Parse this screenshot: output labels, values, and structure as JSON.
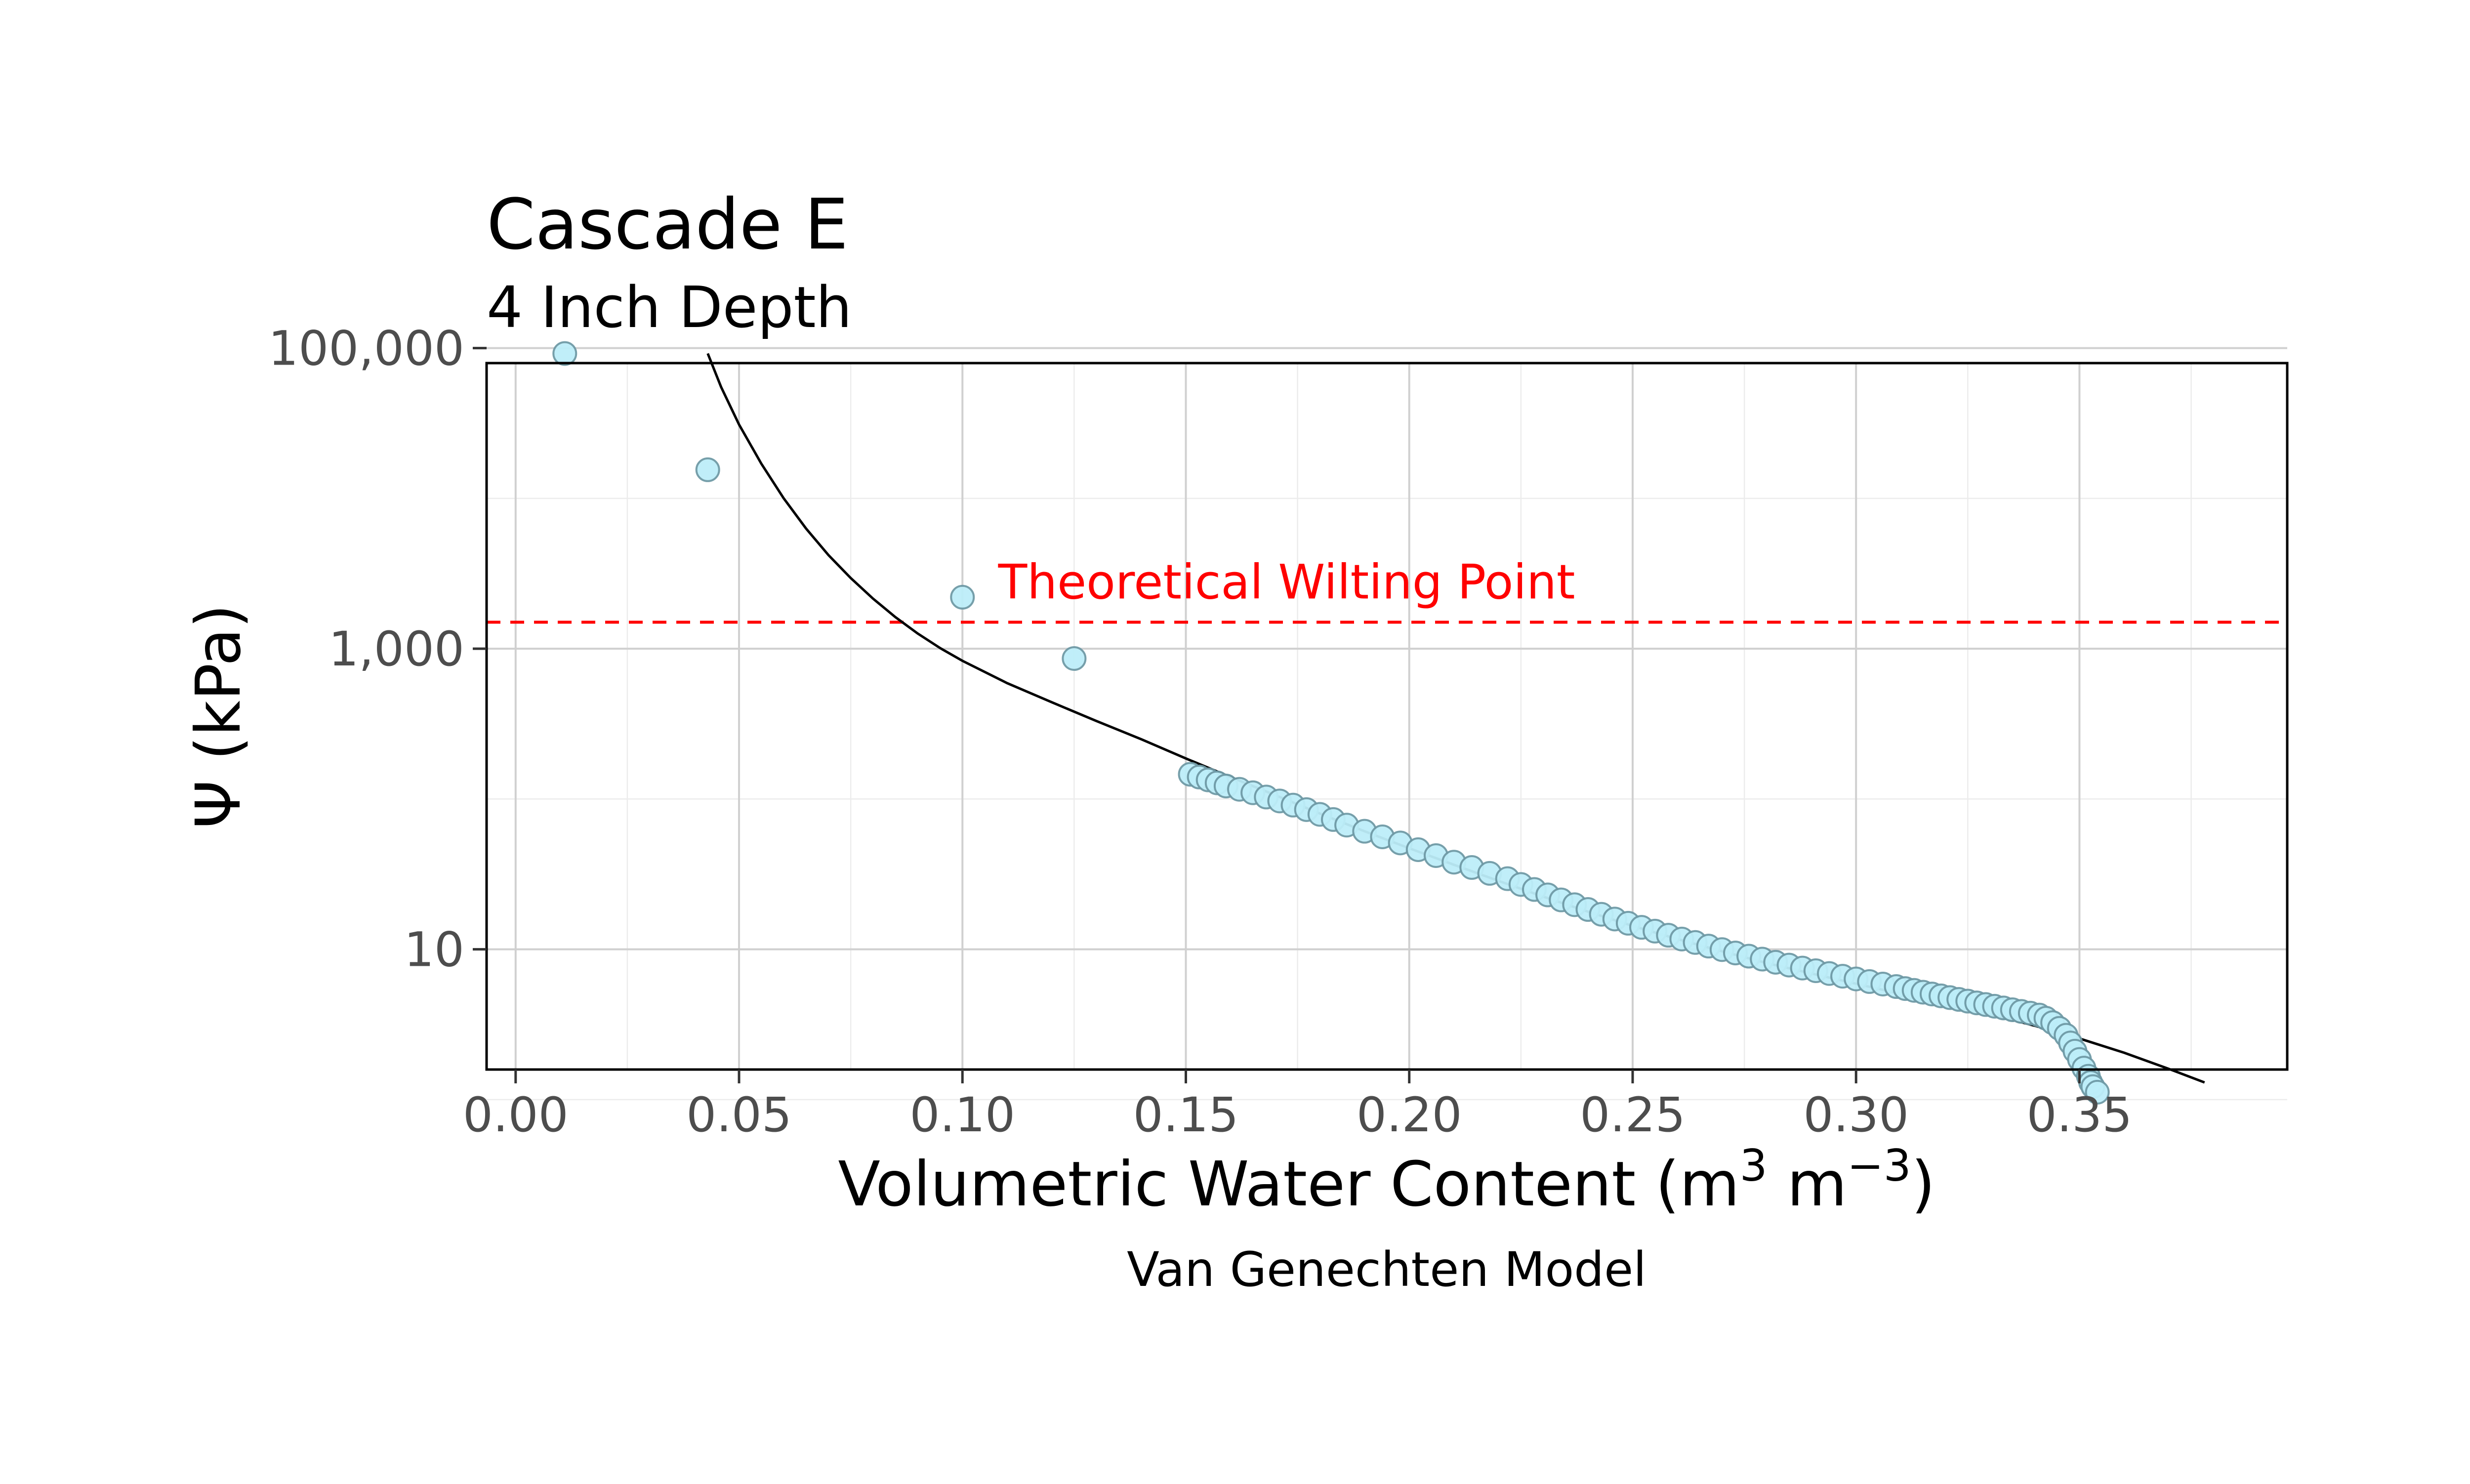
{
  "chart_data": {
    "type": "scatter",
    "title": "Cascade E",
    "subtitle": "4 Inch Depth",
    "xlabel_main": "Volumetric Water Content (m",
    "xlabel_sup1": "3",
    "xlabel_mid": " m",
    "xlabel_sup2": "−3",
    "xlabel_end": ")",
    "ylabel": "Ψ (kPa)",
    "caption": "Van Genechten Model",
    "xlim": [
      -0.0065,
      0.3965
    ],
    "ylim_log10": [
      0.2,
      4.9
    ],
    "y_scale": "log10",
    "grid": true,
    "x_ticks": [
      0.0,
      0.05,
      0.1,
      0.15,
      0.2,
      0.25,
      0.3,
      0.35
    ],
    "x_tick_labels": [
      "0.00",
      "0.05",
      "0.10",
      "0.15",
      "0.20",
      "0.25",
      "0.30",
      "0.35"
    ],
    "y_ticks": [
      10,
      1000,
      100000
    ],
    "y_tick_labels": [
      "10",
      "1,000",
      "100,000"
    ],
    "reference_line": {
      "label": "Theoretical Wilting Point",
      "y": 1500,
      "color": "#ff0000",
      "style": "dashed"
    },
    "point_color": "#bdeef9",
    "series": [
      {
        "kind": "points",
        "x": [
          0.011,
          0.043,
          0.1,
          0.125,
          0.151,
          0.153,
          0.155,
          0.157,
          0.159,
          0.162,
          0.165,
          0.168,
          0.171,
          0.174,
          0.177,
          0.18,
          0.183,
          0.186,
          0.19,
          0.194,
          0.198,
          0.202,
          0.206,
          0.21,
          0.214,
          0.218,
          0.222,
          0.225,
          0.228,
          0.231,
          0.234,
          0.237,
          0.24,
          0.243,
          0.246,
          0.249,
          0.252,
          0.255,
          0.258,
          0.261,
          0.264,
          0.267,
          0.27,
          0.273,
          0.276,
          0.279,
          0.282,
          0.285,
          0.288,
          0.291,
          0.294,
          0.297,
          0.3,
          0.303,
          0.306,
          0.309,
          0.311,
          0.313,
          0.315,
          0.317,
          0.319,
          0.321,
          0.323,
          0.325,
          0.327,
          0.329,
          0.331,
          0.333,
          0.335,
          0.337,
          0.339,
          0.341,
          0.3425,
          0.344,
          0.3455,
          0.347,
          0.348,
          0.349,
          0.35,
          0.351,
          0.352,
          0.3525,
          0.353,
          0.354
        ],
        "y": [
          92000,
          15500,
          2200,
          860,
          146,
          140,
          134,
          128,
          122,
          116,
          110,
          103,
          97,
          91,
          85,
          79,
          73,
          67,
          61,
          56,
          51,
          46,
          42,
          38,
          35,
          32,
          29.5,
          27,
          25,
          23,
          21.3,
          19.8,
          18.4,
          17.1,
          15.9,
          14.9,
          14,
          13.2,
          12.4,
          11.7,
          11.1,
          10.5,
          9.95,
          9.45,
          9.0,
          8.6,
          8.2,
          7.85,
          7.5,
          7.2,
          6.9,
          6.62,
          6.35,
          6.1,
          5.87,
          5.65,
          5.48,
          5.33,
          5.18,
          5.04,
          4.9,
          4.77,
          4.64,
          4.52,
          4.4,
          4.29,
          4.18,
          4.07,
          3.96,
          3.86,
          3.76,
          3.65,
          3.48,
          3.25,
          2.98,
          2.68,
          2.38,
          2.1,
          1.85,
          1.62,
          1.43,
          1.3,
          1.22,
          1.12
        ]
      },
      {
        "kind": "fitted_line",
        "color": "#000000",
        "x": [
          0.043,
          0.046,
          0.05,
          0.055,
          0.06,
          0.065,
          0.07,
          0.075,
          0.08,
          0.085,
          0.09,
          0.095,
          0.1,
          0.11,
          0.12,
          0.13,
          0.14,
          0.15,
          0.16,
          0.17,
          0.18,
          0.19,
          0.2,
          0.21,
          0.22,
          0.23,
          0.24,
          0.25,
          0.26,
          0.27,
          0.28,
          0.29,
          0.3,
          0.31,
          0.32,
          0.33,
          0.34,
          0.35,
          0.36,
          0.37,
          0.378
        ],
        "y": [
          92000,
          55000,
          31000,
          17000,
          10000,
          6300,
          4200,
          2950,
          2150,
          1620,
          1260,
          1010,
          830,
          590,
          440,
          330,
          250,
          186,
          140,
          106,
          80,
          61,
          47,
          36.5,
          28.5,
          22.4,
          17.8,
          14.3,
          11.7,
          9.7,
          8.1,
          6.9,
          5.9,
          5.05,
          4.35,
          3.7,
          3.1,
          2.55,
          2.05,
          1.6,
          1.3
        ]
      }
    ]
  }
}
